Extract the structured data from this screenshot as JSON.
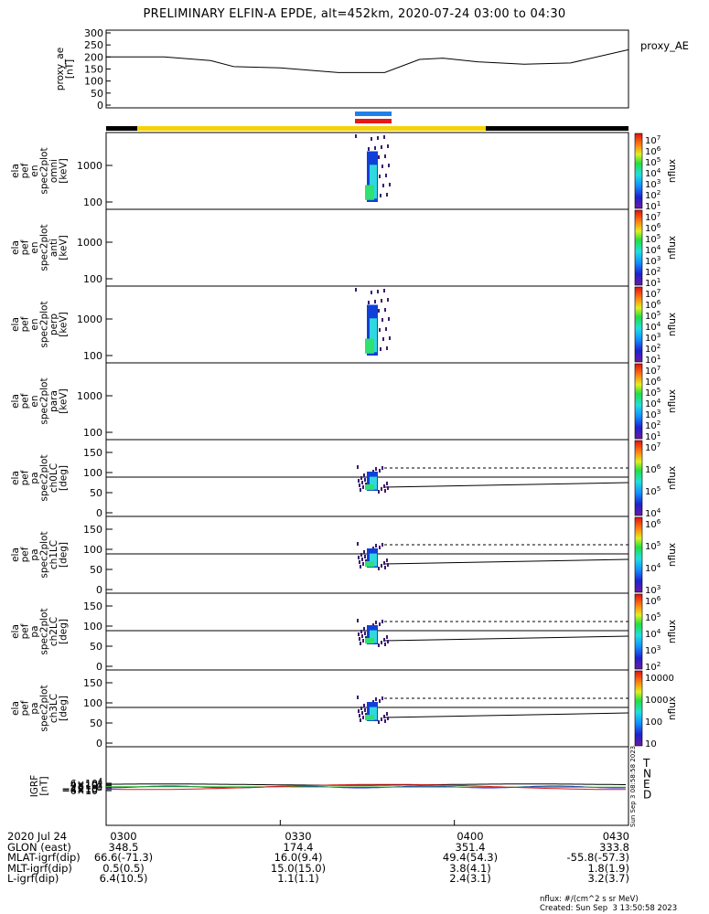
{
  "title": "PRELIMINARY ELFIN-A EPDE, alt=452km, 2020-07-24 03:00 to 04:30",
  "colors": {
    "sun_bar": "#f5d20a",
    "shadow_bar": "#000000",
    "blue_bar": "#2080e8",
    "red_bar": "#e81818",
    "spec_cyan": "#30d8e0",
    "spec_green": "#30e070",
    "spec_blue": "#1040d8",
    "spec_purple": "#3a1a70"
  },
  "ae_panel": {
    "label": "proxy_ae\n[nT]",
    "legend": "proxy_AE",
    "ticks": [
      "300",
      "250",
      "200",
      "150",
      "100",
      "50",
      "0"
    ]
  },
  "panels": [
    {
      "kind": "spec",
      "label": "ela\npef\nen\nspec2plot\nomni\n[keV]",
      "yticks": [
        "1000",
        "100"
      ],
      "cbar_ticks": [
        "10^7",
        "10^6",
        "10^5",
        "10^4",
        "10^3",
        "10^2",
        "10^1"
      ],
      "cbar_label": "nflux",
      "has_data": true
    },
    {
      "kind": "spec",
      "label": "ela\npef\nen\nspec2plot\nanti\n[keV]",
      "yticks": [
        "1000",
        "100"
      ],
      "cbar_ticks": [
        "10^7",
        "10^6",
        "10^5",
        "10^4",
        "10^3",
        "10^2",
        "10^1"
      ],
      "cbar_label": "nflux",
      "has_data": false
    },
    {
      "kind": "spec",
      "label": "ela\npef\nen\nspec2plot\nperp\n[keV]",
      "yticks": [
        "1000",
        "100"
      ],
      "cbar_ticks": [
        "10^7",
        "10^6",
        "10^5",
        "10^4",
        "10^3",
        "10^2",
        "10^1"
      ],
      "cbar_label": "nflux",
      "has_data": true
    },
    {
      "kind": "spec",
      "label": "ela\npef\nen\nspec2plot\npara\n[keV]",
      "yticks": [
        "1000",
        "100"
      ],
      "cbar_ticks": [
        "10^7",
        "10^6",
        "10^5",
        "10^4",
        "10^3",
        "10^2",
        "10^1"
      ],
      "cbar_label": "nflux",
      "has_data": false
    },
    {
      "kind": "pa",
      "label": "ela\npef\npa\nspec2plot\nch0LC\n[deg]",
      "yticks": [
        "150",
        "100",
        "50",
        "0"
      ],
      "cbar_ticks": [
        "10^7",
        "10^6",
        "10^5",
        "10^4"
      ],
      "cbar_label": "nflux"
    },
    {
      "kind": "pa",
      "label": "ela\npef\npa\nspec2plot\nch1LC\n[deg]",
      "yticks": [
        "150",
        "100",
        "50",
        "0"
      ],
      "cbar_ticks": [
        "10^6",
        "10^5",
        "10^4",
        "10^3"
      ],
      "cbar_label": "nflux"
    },
    {
      "kind": "pa",
      "label": "ela\npef\npa\nspec2plot\nch2LC\n[deg]",
      "yticks": [
        "150",
        "100",
        "50",
        "0"
      ],
      "cbar_ticks": [
        "10^6",
        "10^5",
        "10^4",
        "10^3",
        "10^2"
      ],
      "cbar_label": "nflux"
    },
    {
      "kind": "pa",
      "label": "ela\npef\npa\nspec2plot\nch3LC\n[deg]",
      "yticks": [
        "150",
        "100",
        "50",
        "0"
      ],
      "cbar_ticks": [
        "10000",
        "1000",
        "100",
        "10"
      ],
      "cbar_label": "nflux"
    }
  ],
  "igrf_panel": {
    "label": "IGRF\n[nT]",
    "yticks": [
      "6×10^4",
      "4×10^4",
      "2×10^4",
      "0",
      "−2×10^4",
      "−4×10^4",
      "−6×10^4"
    ],
    "legend": [
      {
        "text": "T",
        "color": "#000000"
      },
      {
        "text": "N",
        "color": "#1818d8"
      },
      {
        "text": "E",
        "color": "#18b818"
      },
      {
        "text": "D",
        "color": "#d81818"
      }
    ],
    "side_stamp": "Sun Sep  3 08:58:58 2023"
  },
  "chart_data": {
    "type": "line",
    "title": "PRELIMINARY ELFIN-A EPDE, alt=452km, 2020-07-24 03:00 to 04:30",
    "x_minutes": [
      0,
      10,
      18,
      22,
      30,
      40,
      48,
      54,
      58,
      64,
      72,
      80,
      90
    ],
    "series": [
      {
        "name": "proxy_AE",
        "values": [
          200,
          200,
          185,
          160,
          155,
          135,
          135,
          190,
          195,
          180,
          170,
          175,
          230
        ]
      }
    ],
    "ylabel": "proxy_ae [nT]",
    "ylim": [
      0,
      300
    ]
  },
  "footer": {
    "rows": [
      [
        "2020 Jul 24",
        "0300",
        "0330",
        "0400",
        "0430"
      ],
      [
        "GLON (east)",
        "348.5",
        "174.4",
        "351.4",
        "333.8"
      ],
      [
        "MLAT-igrf(dip)",
        "66.6(-71.3)",
        "16.0(9.4)",
        "49.4(54.3)",
        "-55.8(-57.3)"
      ],
      [
        "MLT-igrf(dip)",
        "0.5(0.5)",
        "15.0(15.0)",
        "3.8(4.1)",
        "1.8(1.9)"
      ],
      [
        "L-igrf(dip)",
        "6.4(10.5)",
        "1.1(1.1)",
        "2.4(3.1)",
        "3.2(3.7)"
      ]
    ],
    "nflux_units": "nflux: #/(cm^2 s sr MeV)",
    "created": "Created: Sun Sep  3 13:50:58 2023"
  }
}
